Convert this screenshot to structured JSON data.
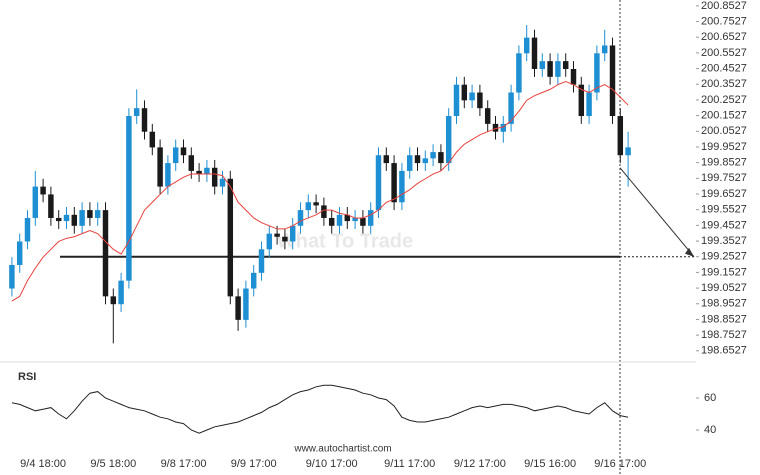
{
  "chart_data": [
    {
      "type": "candlestick",
      "categories": [
        null,
        null,
        null,
        null,
        "9/4 18:00",
        null,
        null,
        null,
        null,
        null,
        null,
        null,
        null,
        "9/5 18:00",
        null,
        null,
        null,
        null,
        null,
        null,
        null,
        null,
        "9/8 17:00",
        null,
        null,
        null,
        null,
        null,
        null,
        null,
        null,
        "9/9 17:00",
        null,
        null,
        null,
        null,
        null,
        null,
        null,
        null,
        null,
        "9/10 17:00",
        null,
        null,
        null,
        null,
        null,
        null,
        null,
        null,
        null,
        "9/11 17:00",
        null,
        null,
        null,
        null,
        null,
        null,
        null,
        null,
        "9/12 17:00",
        null,
        null,
        null,
        null,
        null,
        null,
        null,
        null,
        "9/15 16:00",
        null,
        null,
        null,
        null,
        null,
        null,
        null,
        null,
        "9/16 17:00",
        null
      ],
      "open": [
        199.05,
        199.2,
        199.35,
        199.5,
        199.7,
        199.65,
        199.5,
        199.48,
        199.52,
        199.45,
        199.55,
        199.5,
        199.55,
        199.0,
        198.95,
        199.1,
        200.15,
        200.2,
        200.05,
        199.95,
        199.7,
        199.85,
        199.95,
        199.9,
        199.8,
        199.78,
        199.82,
        199.7,
        199.75,
        199.0,
        198.85,
        199.05,
        199.15,
        199.3,
        199.4,
        199.38,
        199.35,
        199.45,
        199.55,
        199.6,
        199.58,
        199.5,
        199.45,
        199.52,
        199.48,
        199.5,
        199.45,
        199.55,
        199.9,
        199.85,
        199.6,
        199.8,
        199.9,
        199.85,
        199.88,
        199.92,
        199.85,
        200.15,
        200.35,
        200.25,
        200.3,
        200.2,
        200.1,
        200.05,
        200.1,
        200.3,
        200.55,
        200.65,
        200.45,
        200.5,
        200.4,
        200.5,
        200.45,
        200.35,
        200.15,
        200.3,
        200.55,
        200.6,
        200.15,
        199.9
      ],
      "high": [
        199.25,
        199.4,
        199.55,
        199.8,
        199.75,
        199.7,
        199.55,
        199.57,
        199.57,
        199.6,
        199.6,
        199.6,
        199.6,
        199.05,
        199.15,
        200.2,
        200.32,
        200.25,
        200.1,
        200.0,
        199.9,
        200.0,
        200.0,
        199.95,
        199.85,
        199.87,
        199.87,
        199.8,
        199.8,
        199.05,
        199.1,
        199.2,
        199.35,
        199.45,
        199.45,
        199.43,
        199.5,
        199.6,
        199.65,
        199.65,
        199.63,
        199.55,
        199.57,
        199.57,
        199.55,
        199.55,
        199.6,
        199.95,
        199.95,
        199.9,
        199.85,
        199.95,
        199.95,
        199.93,
        199.97,
        199.97,
        200.2,
        200.4,
        200.4,
        200.35,
        200.35,
        200.25,
        200.15,
        200.15,
        200.35,
        200.6,
        200.73,
        200.7,
        200.55,
        200.55,
        200.55,
        200.55,
        200.5,
        200.4,
        200.35,
        200.6,
        200.7,
        200.65,
        200.2,
        200.05
      ],
      "low": [
        199.0,
        199.15,
        199.3,
        199.45,
        199.6,
        199.45,
        199.43,
        199.43,
        199.4,
        199.4,
        199.45,
        199.45,
        198.95,
        198.7,
        198.9,
        199.05,
        200.1,
        200.0,
        199.9,
        199.65,
        199.65,
        199.8,
        199.85,
        199.75,
        199.73,
        199.73,
        199.65,
        199.65,
        198.95,
        198.78,
        198.8,
        199.0,
        199.1,
        199.25,
        199.33,
        199.3,
        199.3,
        199.4,
        199.5,
        199.53,
        199.45,
        199.4,
        199.4,
        199.43,
        199.43,
        199.4,
        199.4,
        199.5,
        199.8,
        199.55,
        199.55,
        199.75,
        199.8,
        199.8,
        199.83,
        199.8,
        199.8,
        200.1,
        200.2,
        200.2,
        200.15,
        200.05,
        200.0,
        199.98,
        200.05,
        200.25,
        200.5,
        200.4,
        200.4,
        200.35,
        200.35,
        200.4,
        200.3,
        200.1,
        200.1,
        200.25,
        200.5,
        200.1,
        199.85,
        199.7
      ],
      "close": [
        199.2,
        199.35,
        199.5,
        199.7,
        199.65,
        199.5,
        199.48,
        199.52,
        199.45,
        199.55,
        199.5,
        199.55,
        199.0,
        198.95,
        199.1,
        200.15,
        200.2,
        200.05,
        199.95,
        199.7,
        199.85,
        199.95,
        199.9,
        199.8,
        199.78,
        199.82,
        199.7,
        199.75,
        199.0,
        198.85,
        199.05,
        199.15,
        199.3,
        199.4,
        199.38,
        199.35,
        199.45,
        199.55,
        199.6,
        199.58,
        199.5,
        199.45,
        199.52,
        199.48,
        199.5,
        199.45,
        199.55,
        199.9,
        199.85,
        199.6,
        199.8,
        199.9,
        199.85,
        199.88,
        199.92,
        199.85,
        200.15,
        200.35,
        200.25,
        200.3,
        200.2,
        200.1,
        200.05,
        200.1,
        200.3,
        200.55,
        200.65,
        200.45,
        200.5,
        200.4,
        200.5,
        200.45,
        200.35,
        200.15,
        200.3,
        200.55,
        200.6,
        200.15,
        199.9,
        199.95
      ],
      "up_color": "#1e8fd2",
      "down_color": "#1a1a1a",
      "ma": {
        "color": "#e8413c",
        "values": [
          198.97,
          199.0,
          199.1,
          199.18,
          199.25,
          199.3,
          199.35,
          199.37,
          199.38,
          199.4,
          199.42,
          199.4,
          199.35,
          199.3,
          199.27,
          199.35,
          199.45,
          199.55,
          199.6,
          199.65,
          199.7,
          199.73,
          199.76,
          199.78,
          199.78,
          199.78,
          199.78,
          199.77,
          199.7,
          199.6,
          199.55,
          199.5,
          199.47,
          199.45,
          199.43,
          199.43,
          199.45,
          199.48,
          199.5,
          199.52,
          199.55,
          199.55,
          199.53,
          199.52,
          199.5,
          199.5,
          199.52,
          199.55,
          199.6,
          199.62,
          199.65,
          199.68,
          199.72,
          199.75,
          199.78,
          199.8,
          199.85,
          199.92,
          199.97,
          200.0,
          200.03,
          200.05,
          200.07,
          200.08,
          200.12,
          200.18,
          200.25,
          200.28,
          200.3,
          200.32,
          200.35,
          200.37,
          200.35,
          200.32,
          200.3,
          200.33,
          200.35,
          200.32,
          200.27,
          200.22
        ]
      },
      "support_level": 199.2527,
      "arrow_start": 199.82,
      "level_color": "#222222",
      "ylim": [
        198.61,
        200.89
      ],
      "yticks": [
        200.8527,
        200.7527,
        200.6527,
        200.5527,
        200.4527,
        200.3527,
        200.2527,
        200.1527,
        200.0527,
        199.9527,
        199.8527,
        199.7527,
        199.6527,
        199.5527,
        199.4527,
        199.3527,
        199.2527,
        199.1527,
        199.0527,
        198.9527,
        198.8527,
        198.7527,
        198.6527
      ],
      "watermark": "What To Trade",
      "source": "www.autochartist.com"
    },
    {
      "type": "line",
      "title": "RSI",
      "color": "#222222",
      "values": [
        57,
        56,
        54,
        52,
        53,
        54,
        50,
        47,
        52,
        58,
        63,
        64,
        60,
        58,
        56,
        54,
        53,
        52,
        50,
        48,
        47,
        45,
        44,
        40,
        38,
        40,
        42,
        43,
        44,
        45,
        47,
        49,
        51,
        54,
        56,
        59,
        62,
        64,
        65,
        67,
        68,
        68,
        67,
        66,
        65,
        63,
        62,
        60,
        59,
        55,
        48,
        46,
        45,
        45,
        46,
        47,
        48,
        50,
        52,
        54,
        55,
        54,
        55,
        56,
        56,
        55,
        54,
        52,
        53,
        54,
        55,
        54,
        52,
        51,
        50,
        54,
        57,
        52,
        49,
        48
      ],
      "ylim": [
        35,
        75
      ],
      "yticks": [
        60,
        40
      ]
    }
  ]
}
